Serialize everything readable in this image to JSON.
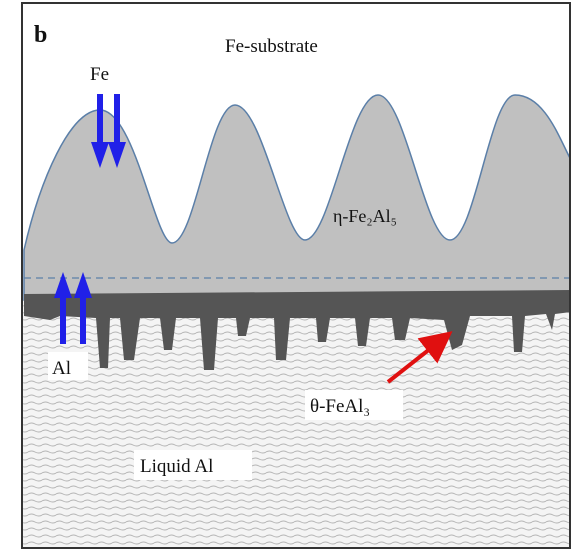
{
  "panel_label": "b",
  "regions": {
    "substrate": "Fe-substrate",
    "eta_phase": "η-Fe₂Al₅",
    "theta_phase": "θ-FeAl₃",
    "liquid": "Liquid Al"
  },
  "arrows": {
    "down_label": "Fe",
    "up_label": "Al"
  }
}
